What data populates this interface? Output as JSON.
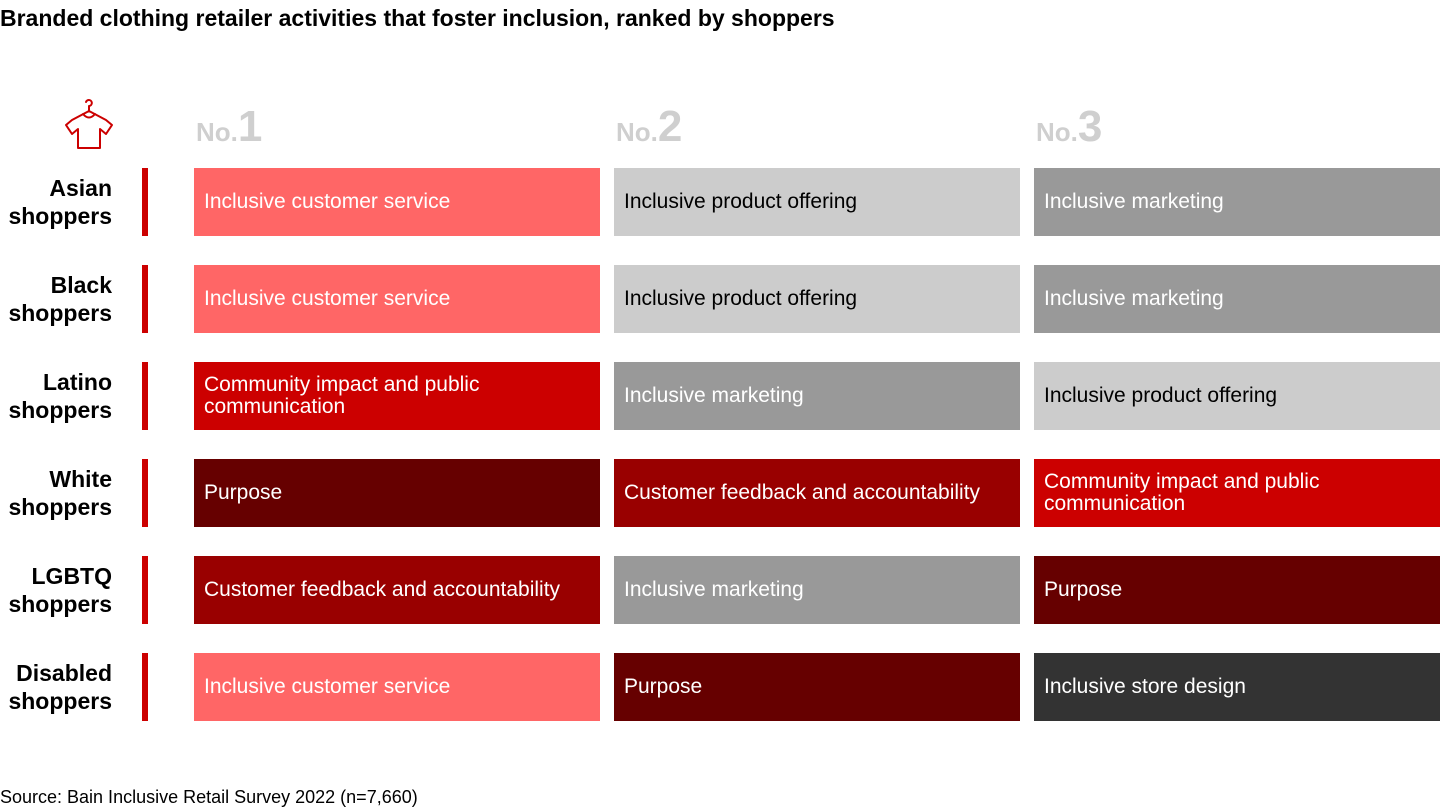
{
  "title": "Branded clothing retailer activities that foster inclusion, ranked by shoppers",
  "source": "Source: Bain Inclusive Retail Survey 2022 (n=7,660)",
  "icon": "clothes-hanger-shirt-icon",
  "colors": {
    "Inclusive customer service": {
      "bg": "#ff6666",
      "fg": "#ffffff"
    },
    "Inclusive product offering": {
      "bg": "#cccccc",
      "fg": "#000000"
    },
    "Inclusive marketing": {
      "bg": "#999999",
      "fg": "#ffffff"
    },
    "Community impact and public communication": {
      "bg": "#cc0000",
      "fg": "#ffffff"
    },
    "Purpose": {
      "bg": "#660000",
      "fg": "#ffffff"
    },
    "Customer feedback and accountability": {
      "bg": "#990000",
      "fg": "#ffffff"
    },
    "Inclusive store design": {
      "bg": "#333333",
      "fg": "#ffffff"
    }
  },
  "chart_data": {
    "type": "table",
    "title": "Branded clothing retailer activities that foster inclusion, ranked by shoppers",
    "columns": [
      {
        "prefix": "No.",
        "number": "1"
      },
      {
        "prefix": "No.",
        "number": "2"
      },
      {
        "prefix": "No.",
        "number": "3"
      }
    ],
    "rows": [
      {
        "label": "Asian shoppers",
        "ranks": [
          "Inclusive customer service",
          "Inclusive product offering",
          "Inclusive marketing"
        ]
      },
      {
        "label": "Black shoppers",
        "ranks": [
          "Inclusive customer service",
          "Inclusive product offering",
          "Inclusive marketing"
        ]
      },
      {
        "label": "Latino shoppers",
        "ranks": [
          "Community impact and public communication",
          "Inclusive marketing",
          "Inclusive product offering"
        ]
      },
      {
        "label": "White shoppers",
        "ranks": [
          "Purpose",
          "Customer feedback and accountability",
          "Community impact and public communication"
        ]
      },
      {
        "label": "LGBTQ shoppers",
        "ranks": [
          "Customer feedback and accountability",
          "Inclusive marketing",
          "Purpose"
        ]
      },
      {
        "label": "Disabled shoppers",
        "ranks": [
          "Inclusive customer service",
          "Purpose",
          "Inclusive store design"
        ]
      }
    ]
  }
}
